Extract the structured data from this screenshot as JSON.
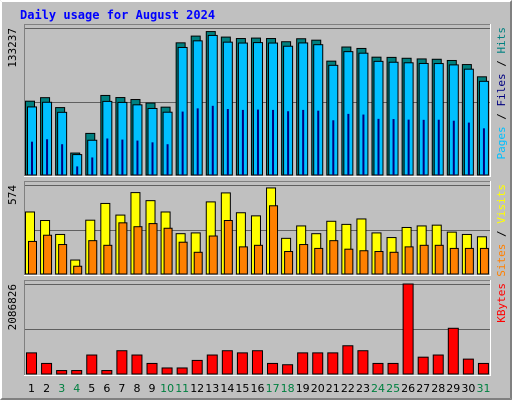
{
  "chart_data": {
    "type": "bar",
    "title": "Daily usage for August 2024",
    "categories": [
      "1",
      "2",
      "3",
      "4",
      "5",
      "6",
      "7",
      "8",
      "9",
      "10",
      "11",
      "12",
      "13",
      "14",
      "15",
      "16",
      "17",
      "18",
      "19",
      "20",
      "21",
      "22",
      "23",
      "24",
      "25",
      "26",
      "27",
      "28",
      "29",
      "30",
      "31"
    ],
    "weekend_days": [
      "3",
      "4",
      "10",
      "11",
      "17",
      "18",
      "24",
      "25",
      "31"
    ],
    "colors": {
      "hits": "#008080",
      "files": "#00c0ff",
      "pages": "#000080",
      "visits": "#ffff00",
      "sites": "#ff8000",
      "kbytes": "#ff0000",
      "title": "#0000ff",
      "weekend_label": "#008040"
    },
    "panels": [
      {
        "id": "hits-panel",
        "ymax_label": "133237",
        "ymax": 133237,
        "axis_label_parts": [
          {
            "text": "Pages",
            "color": "#00c0ff"
          },
          {
            "text": " / ",
            "color": "#000000"
          },
          {
            "text": "Files",
            "color": "#000080"
          },
          {
            "text": " / ",
            "color": "#000000"
          },
          {
            "text": "Hits",
            "color": "#008080"
          }
        ],
        "series": [
          {
            "name": "Hits",
            "values": [
              66900,
              70100,
              61100,
              19900,
              37700,
              72100,
              70200,
              68400,
              65200,
              61500,
              119800,
              125900,
              130000,
              125000,
              123700,
              124100,
              123700,
              120800,
              123500,
              122200,
              103200,
              116000,
              114700,
              106800,
              106600,
              105800,
              105200,
              104900,
              103800,
              100100,
              89000
            ]
          },
          {
            "name": "Files",
            "values": [
              61700,
              65900,
              56800,
              18500,
              31500,
              66700,
              65800,
              63600,
              60300,
              56900,
              115600,
              121600,
              126500,
              120400,
              119600,
              120000,
              119600,
              116700,
              119700,
              118100,
              99400,
              111800,
              110400,
              103000,
              102200,
              101700,
              101100,
              101000,
              99800,
              95900,
              84900
            ]
          },
          {
            "name": "Pages",
            "values": [
              30200,
              32400,
              27900,
              7800,
              15900,
              33100,
              32100,
              31200,
              29600,
              27900,
              57500,
              60400,
              62700,
              59800,
              59000,
              59300,
              59000,
              57800,
              59000,
              58300,
              49600,
              55400,
              54800,
              50900,
              50700,
              50200,
              50000,
              50100,
              49200,
              47500,
              42300
            ]
          }
        ]
      },
      {
        "id": "visits-panel",
        "ymax_label": "574",
        "ymax": 574,
        "axis_label_parts": [
          {
            "text": "Sites",
            "color": "#ff8000"
          },
          {
            "text": " / ",
            "color": "#000000"
          },
          {
            "text": "Visits",
            "color": "#ffff00"
          }
        ],
        "series": [
          {
            "name": "Visits",
            "values": [
              400,
              345,
              255,
              90,
              347,
              455,
              380,
              525,
              473,
              400,
              260,
              265,
              465,
              523,
              395,
              375,
              555,
              230,
              310,
              260,
              340,
              320,
              355,
              265,
              235,
              300,
              310,
              315,
              270,
              255,
              240
            ]
          },
          {
            "name": "Sites",
            "values": [
              210,
              250,
              190,
              50,
              215,
              185,
              330,
              305,
              325,
              295,
              205,
              140,
              245,
              345,
              175,
              185,
              440,
              145,
              190,
              165,
              215,
              160,
              150,
              145,
              140,
              175,
              185,
              185,
              165,
              165,
              165
            ]
          }
        ]
      },
      {
        "id": "kbytes-panel",
        "ymax_label": "2086826",
        "ymax": 2086826,
        "axis_label_parts": [
          {
            "text": "KBytes",
            "color": "#ff0000"
          }
        ],
        "series": [
          {
            "name": "KBytes",
            "values": [
              490000,
              245000,
              80000,
              80000,
              440000,
              80000,
              540000,
              440000,
              245000,
              140000,
              140000,
              315000,
              440000,
              540000,
              490000,
              540000,
              245000,
              215000,
              490000,
              490000,
              490000,
              655000,
              540000,
              245000,
              245000,
              2086826,
              390000,
              440000,
              1060000,
              345000,
              245000
            ]
          }
        ]
      }
    ]
  }
}
